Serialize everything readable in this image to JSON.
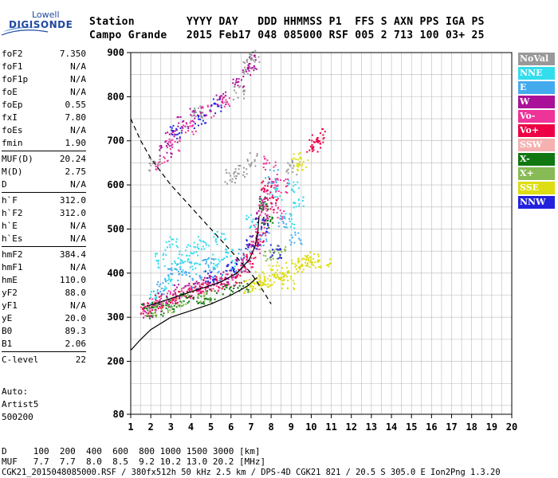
{
  "logo": {
    "line1": "Lowell",
    "line2": "DIGISONDE"
  },
  "header": {
    "row1": "Station        YYYY DAY   DDD HHMMSS P1  FFS S AXN PPS IGA PS",
    "row2": "Campo Grande   2015 Feb17 048 085000 RSF 005 2 713 100 03+ 25"
  },
  "params": [
    {
      "k": "foF2",
      "v": "7.350"
    },
    {
      "k": "foF1",
      "v": "N/A"
    },
    {
      "k": "foF1p",
      "v": "N/A"
    },
    {
      "k": "foE",
      "v": "N/A"
    },
    {
      "k": "foEp",
      "v": "0.55"
    },
    {
      "k": "fxI",
      "v": "7.80"
    },
    {
      "k": "foEs",
      "v": "N/A"
    },
    {
      "k": "fmin",
      "v": "1.90"
    },
    {
      "k": "MUF(D)",
      "v": "20.24",
      "sep": true
    },
    {
      "k": "M(D)",
      "v": "2.75"
    },
    {
      "k": "D",
      "v": "N/A"
    },
    {
      "k": "h`F",
      "v": "312.0",
      "sep": true
    },
    {
      "k": "h`F2",
      "v": "312.0"
    },
    {
      "k": "h`E",
      "v": "N/A"
    },
    {
      "k": "h`Es",
      "v": "N/A"
    },
    {
      "k": "hmF2",
      "v": "384.4",
      "sep": true
    },
    {
      "k": "hmF1",
      "v": "N/A"
    },
    {
      "k": "hmE",
      "v": "110.0"
    },
    {
      "k": "yF2",
      "v": "88.0"
    },
    {
      "k": "yF1",
      "v": "N/A"
    },
    {
      "k": "yE",
      "v": "20.0"
    },
    {
      "k": "B0",
      "v": "89.3"
    },
    {
      "k": "B1",
      "v": "2.06"
    },
    {
      "k": "C-level",
      "v": "22",
      "sep": true
    }
  ],
  "auto": {
    "line1": "Auto:",
    "line2": "Artist5",
    "line3": "500200"
  },
  "legend": [
    {
      "label": "NoVal",
      "color": "#999999"
    },
    {
      "label": "NNE",
      "color": "#33ddee"
    },
    {
      "label": "E",
      "color": "#44aaee"
    },
    {
      "label": "W",
      "color": "#aa1199"
    },
    {
      "label": "Vo-",
      "color": "#ee3399"
    },
    {
      "label": "Vo+",
      "color": "#ee0044"
    },
    {
      "label": "SSW",
      "color": "#f5b0b0"
    },
    {
      "label": "X-",
      "color": "#117711"
    },
    {
      "label": "X+",
      "color": "#88bb55"
    },
    {
      "label": "SSE",
      "color": "#dddd11"
    },
    {
      "label": "NNW",
      "color": "#2222dd"
    }
  ],
  "footer": {
    "d_row": "D     100  200  400  600  800 1000 1500 3000 [km]",
    "muf_row": "MUF   7.7  7.7  8.0  8.5  9.2 10.2 13.0 20.2 [MHz]",
    "info": "CGK21_2015048085000.RSF / 380fx512h 50 kHz 2.5 km / DPS-4D CGK21 821 / 20.5 S 305.0 E Ion2Png 1.3.20"
  },
  "chart_data": {
    "type": "scatter",
    "xlim": [
      1,
      20
    ],
    "ylim": [
      80,
      900
    ],
    "x_ticks": [
      1,
      2,
      3,
      4,
      5,
      6,
      7,
      8,
      9,
      10,
      11,
      12,
      13,
      14,
      15,
      16,
      17,
      18,
      19,
      20
    ],
    "y_ticks": [
      80,
      200,
      300,
      400,
      500,
      600,
      700,
      800,
      900
    ],
    "grid": true,
    "dashed_curve": [
      [
        1,
        750
      ],
      [
        1.5,
        700
      ],
      [
        2,
        660
      ],
      [
        3,
        600
      ],
      [
        4,
        550
      ],
      [
        5,
        500
      ],
      [
        6,
        450
      ],
      [
        7,
        400
      ],
      [
        7.6,
        360
      ],
      [
        8,
        330
      ]
    ],
    "solid_curve": [
      [
        1,
        225
      ],
      [
        1.5,
        250
      ],
      [
        2,
        272
      ],
      [
        3,
        300
      ],
      [
        4,
        315
      ],
      [
        5,
        330
      ],
      [
        6,
        350
      ],
      [
        6.8,
        370
      ],
      [
        7.3,
        390
      ]
    ],
    "profile_curve": [
      [
        1.8,
        325
      ],
      [
        2.5,
        335
      ],
      [
        3.5,
        350
      ],
      [
        4.5,
        365
      ],
      [
        5.5,
        380
      ],
      [
        6.3,
        400
      ],
      [
        6.9,
        430
      ],
      [
        7.2,
        460
      ],
      [
        7.35,
        500
      ],
      [
        7.4,
        530
      ]
    ],
    "series": [
      {
        "name": "NNE",
        "points": [
          [
            2.2,
            345
          ],
          [
            2.9,
            380
          ],
          [
            3.3,
            420
          ],
          [
            3.7,
            440
          ],
          [
            4.2,
            410
          ],
          [
            4.6,
            470
          ],
          [
            5.1,
            430
          ],
          [
            5.4,
            480
          ],
          [
            5.8,
            440
          ],
          [
            6.3,
            420
          ],
          [
            7.0,
            520
          ],
          [
            8.2,
            580
          ],
          [
            8.9,
            520
          ],
          [
            9.1,
            600
          ],
          [
            9.4,
            560
          ],
          [
            3.0,
            470
          ],
          [
            2.5,
            430
          ],
          [
            4.0,
            455
          ]
        ]
      },
      {
        "name": "E",
        "points": [
          [
            2.4,
            370
          ],
          [
            3.1,
            400
          ],
          [
            3.6,
            410
          ],
          [
            4.3,
            380
          ],
          [
            4.8,
            420
          ],
          [
            5.3,
            400
          ],
          [
            6.0,
            400
          ],
          [
            6.6,
            440
          ],
          [
            7.6,
            480
          ],
          [
            8.6,
            520
          ],
          [
            9.2,
            480
          ],
          [
            8.0,
            620
          ]
        ]
      },
      {
        "name": "W",
        "points": [
          [
            1.9,
            315
          ],
          [
            2.6,
            340
          ],
          [
            3.4,
            360
          ],
          [
            4.1,
            370
          ],
          [
            4.9,
            380
          ],
          [
            5.7,
            390
          ],
          [
            6.5,
            420
          ],
          [
            7.1,
            470
          ],
          [
            7.5,
            530
          ],
          [
            7.7,
            560
          ],
          [
            2.7,
            680
          ],
          [
            3.0,
            710
          ],
          [
            3.6,
            740
          ],
          [
            4.2,
            760
          ],
          [
            5.5,
            800
          ],
          [
            6.3,
            830
          ],
          [
            6.8,
            860
          ],
          [
            7.1,
            880
          ]
        ]
      },
      {
        "name": "Vo-",
        "points": [
          [
            1.7,
            315
          ],
          [
            2.2,
            330
          ],
          [
            3.0,
            345
          ],
          [
            3.8,
            360
          ],
          [
            4.5,
            365
          ],
          [
            5.2,
            375
          ],
          [
            5.9,
            385
          ],
          [
            6.7,
            420
          ],
          [
            7.2,
            460
          ],
          [
            7.4,
            500
          ],
          [
            7.6,
            540
          ],
          [
            7.8,
            580
          ],
          [
            8.1,
            610
          ],
          [
            7.9,
            650
          ],
          [
            2.5,
            650
          ],
          [
            3.1,
            690
          ],
          [
            3.9,
            730
          ],
          [
            4.8,
            770
          ],
          [
            5.6,
            790
          ],
          [
            8.3,
            540
          ],
          [
            8.5,
            600
          ]
        ]
      },
      {
        "name": "Vo+",
        "points": [
          [
            1.8,
            320
          ],
          [
            2.4,
            335
          ],
          [
            3.2,
            350
          ],
          [
            4.0,
            362
          ],
          [
            4.7,
            372
          ],
          [
            5.5,
            382
          ],
          [
            6.2,
            395
          ],
          [
            6.9,
            430
          ],
          [
            7.3,
            480
          ],
          [
            7.7,
            600
          ],
          [
            8.0,
            560
          ],
          [
            10.0,
            690
          ],
          [
            10.3,
            700
          ],
          [
            10.5,
            715
          ]
        ]
      },
      {
        "name": "X-",
        "points": [
          [
            1.8,
            315
          ],
          [
            2.3,
            320
          ],
          [
            3.0,
            330
          ],
          [
            3.7,
            340
          ],
          [
            4.4,
            345
          ],
          [
            5.0,
            350
          ],
          [
            5.8,
            360
          ],
          [
            6.6,
            370
          ],
          [
            7.6,
            560
          ],
          [
            7.8,
            520
          ]
        ]
      },
      {
        "name": "X+",
        "points": [
          [
            2.0,
            318
          ],
          [
            2.8,
            328
          ],
          [
            3.6,
            338
          ],
          [
            4.6,
            350
          ],
          [
            7.9,
            440
          ],
          [
            8.4,
            450
          ]
        ]
      },
      {
        "name": "SSE",
        "points": [
          [
            6.9,
            370
          ],
          [
            7.2,
            375
          ],
          [
            7.6,
            380
          ],
          [
            7.9,
            385
          ],
          [
            8.3,
            395
          ],
          [
            8.7,
            400
          ],
          [
            9.0,
            410
          ],
          [
            9.3,
            420
          ],
          [
            9.6,
            425
          ],
          [
            9.9,
            430
          ],
          [
            10.2,
            435
          ],
          [
            10.6,
            425
          ],
          [
            8.1,
            410
          ],
          [
            8.8,
            380
          ],
          [
            7.4,
            390
          ],
          [
            9.5,
            650
          ],
          [
            9.3,
            660
          ]
        ]
      },
      {
        "name": "NNW",
        "points": [
          [
            5.0,
            390
          ],
          [
            6.0,
            410
          ],
          [
            7.0,
            470
          ],
          [
            7.5,
            510
          ],
          [
            8.2,
            450
          ],
          [
            3.2,
            720
          ],
          [
            4.4,
            745
          ],
          [
            5.2,
            780
          ]
        ]
      },
      {
        "name": "NoVal",
        "points": [
          [
            2.1,
            650
          ],
          [
            4.3,
            770
          ],
          [
            5.9,
            620
          ],
          [
            6.5,
            630
          ],
          [
            7.0,
            660
          ],
          [
            9.0,
            640
          ],
          [
            6.4,
            810
          ],
          [
            6.9,
            870
          ],
          [
            7.2,
            895
          ]
        ]
      }
    ]
  }
}
